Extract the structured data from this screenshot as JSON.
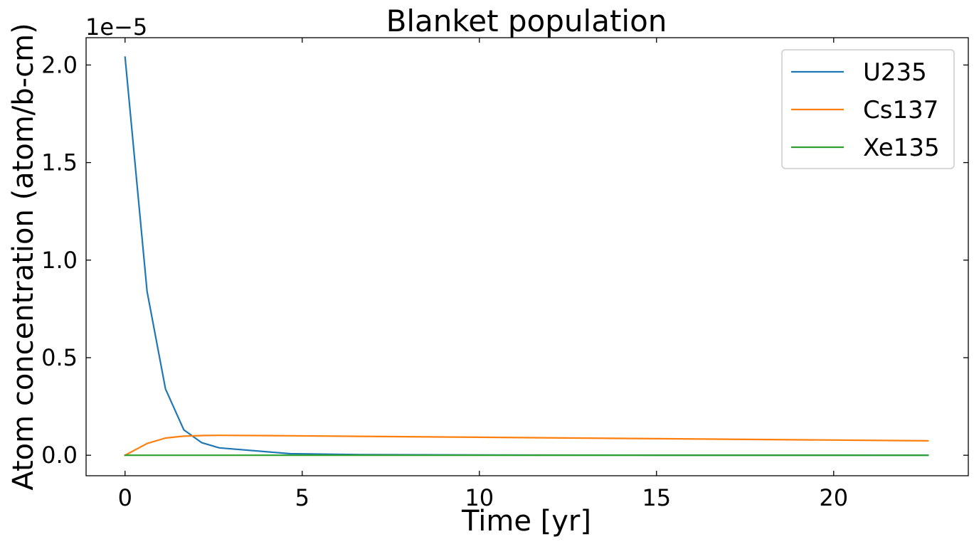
{
  "chart_data": {
    "type": "line",
    "title": "Blanket population",
    "xlabel": "Time [yr]",
    "ylabel": "Atom concentration (atom/b-cm)",
    "y_offset_label": "1e−5",
    "xlim": [
      -1.1,
      23.8
    ],
    "ylim": [
      -0.105,
      2.14
    ],
    "xticks": [
      0,
      5,
      10,
      15,
      20
    ],
    "xtick_labels": [
      "0",
      "5",
      "10",
      "15",
      "20"
    ],
    "yticks": [
      0.0,
      0.5,
      1.0,
      1.5,
      2.0
    ],
    "ytick_labels": [
      "0.0",
      "0.5",
      "1.0",
      "1.5",
      "2.0"
    ],
    "grid": false,
    "legend_position": "top-right",
    "series": [
      {
        "name": "U235",
        "color": "#1f77b4",
        "x": [
          0,
          0.62,
          1.14,
          1.66,
          2.16,
          2.66,
          4.66,
          6.66,
          10,
          15,
          20,
          22.66
        ],
        "y": [
          2.04,
          0.84,
          0.34,
          0.13,
          0.065,
          0.038,
          0.008,
          0.003,
          0.001,
          0.0005,
          0.0002,
          0.0001
        ]
      },
      {
        "name": "Cs137",
        "color": "#ff7f0e",
        "x": [
          0,
          0.62,
          1.14,
          1.66,
          2.16,
          2.66,
          4.66,
          6.66,
          10,
          15,
          20,
          22.66
        ],
        "y": [
          0.0,
          0.06,
          0.088,
          0.098,
          0.101,
          0.102,
          0.1,
          0.097,
          0.092,
          0.085,
          0.078,
          0.074
        ]
      },
      {
        "name": "Xe135",
        "color": "#2ca02c",
        "x": [
          0,
          2.66,
          6.66,
          10,
          15,
          20,
          22.66
        ],
        "y": [
          0.0,
          0.0,
          0.0,
          0.0,
          0.0,
          0.0,
          0.0
        ]
      }
    ]
  }
}
